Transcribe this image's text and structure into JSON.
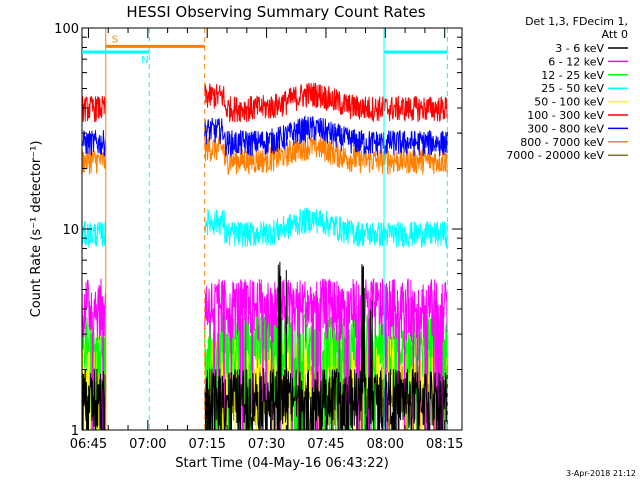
{
  "chart_data": {
    "type": "line",
    "title": "HESSI Observing Summary Count Rates",
    "xlabel": "Start Time (04-May-16 06:43:22)",
    "ylabel": "Count Rate (s⁻¹ detector⁻¹)",
    "yscale": "log",
    "ylim": [
      1,
      100
    ],
    "xlim_minutes": [
      0,
      96
    ],
    "x_ticks": [
      {
        "label": "06:45",
        "minute": 1.63
      },
      {
        "label": "07:00",
        "minute": 16.63
      },
      {
        "label": "07:15",
        "minute": 31.63
      },
      {
        "label": "07:30",
        "minute": 46.63
      },
      {
        "label": "07:45",
        "minute": 61.63
      },
      {
        "label": "08:00",
        "minute": 76.63
      },
      {
        "label": "08:15",
        "minute": 91.63
      }
    ],
    "y_ticks": [
      {
        "label": "1",
        "value": 1
      },
      {
        "label": "10",
        "value": 10
      },
      {
        "label": "100",
        "value": 100
      }
    ],
    "legend": {
      "position": "top-right",
      "header": [
        "Det 1,3, FDecim 1,",
        "Att 0"
      ]
    },
    "data_gaps_minutes": [
      [
        6.0,
        31.0
      ],
      [
        92.3,
        96
      ]
    ],
    "series": [
      {
        "name": "3 - 6 keV",
        "color": "#000000",
        "level": 1.5,
        "spikes": [
          [
            50,
            7.5
          ],
          [
            52,
            6.5
          ],
          [
            71,
            7.0
          ],
          [
            73,
            5.5
          ]
        ]
      },
      {
        "name": "6 - 12 keV",
        "color": "#ff00ff",
        "level": 4.2
      },
      {
        "name": "12 - 25 keV",
        "color": "#00ff00",
        "level": 2.8
      },
      {
        "name": "25 - 50 keV",
        "color": "#00ffff",
        "level": 9.5
      },
      {
        "name": "50 - 100 keV",
        "color": "#ffff00",
        "level": 2.2
      },
      {
        "name": "100 - 300 keV",
        "color": "#ff0000",
        "level": 40
      },
      {
        "name": "300 - 800 keV",
        "color": "#0000ff",
        "level": 27
      },
      {
        "name": "800 - 7000 keV",
        "color": "#ff8000",
        "level": 22
      },
      {
        "name": "7000 - 20000 keV",
        "color": "#808000",
        "level": 1.6
      }
    ],
    "flags": [
      {
        "label": "S",
        "color": "#ff8000",
        "start_minute": 6.0,
        "end_minute": 31.0,
        "level": 81
      },
      {
        "label": "N",
        "color": "#00ffff",
        "start_minute": 0.0,
        "end_minute": 17.0,
        "level": 76
      },
      {
        "label": "",
        "color": "#00ffff",
        "start_minute": 76.3,
        "end_minute": 92.3,
        "level": 76
      }
    ],
    "vlines": [
      {
        "minute": 17.0,
        "color": "#00ffff",
        "style": "dashed"
      },
      {
        "minute": 31.0,
        "color": "#ff8000",
        "style": "dashed"
      },
      {
        "minute": 92.3,
        "color": "#00ffff",
        "style": "dashed"
      },
      {
        "minute": 6.0,
        "color": "#ff8000",
        "style": "solid"
      },
      {
        "minute": 76.3,
        "color": "#00ffff",
        "style": "solid"
      }
    ]
  },
  "footer": {
    "date": "3-Apr-2018 21:12"
  }
}
